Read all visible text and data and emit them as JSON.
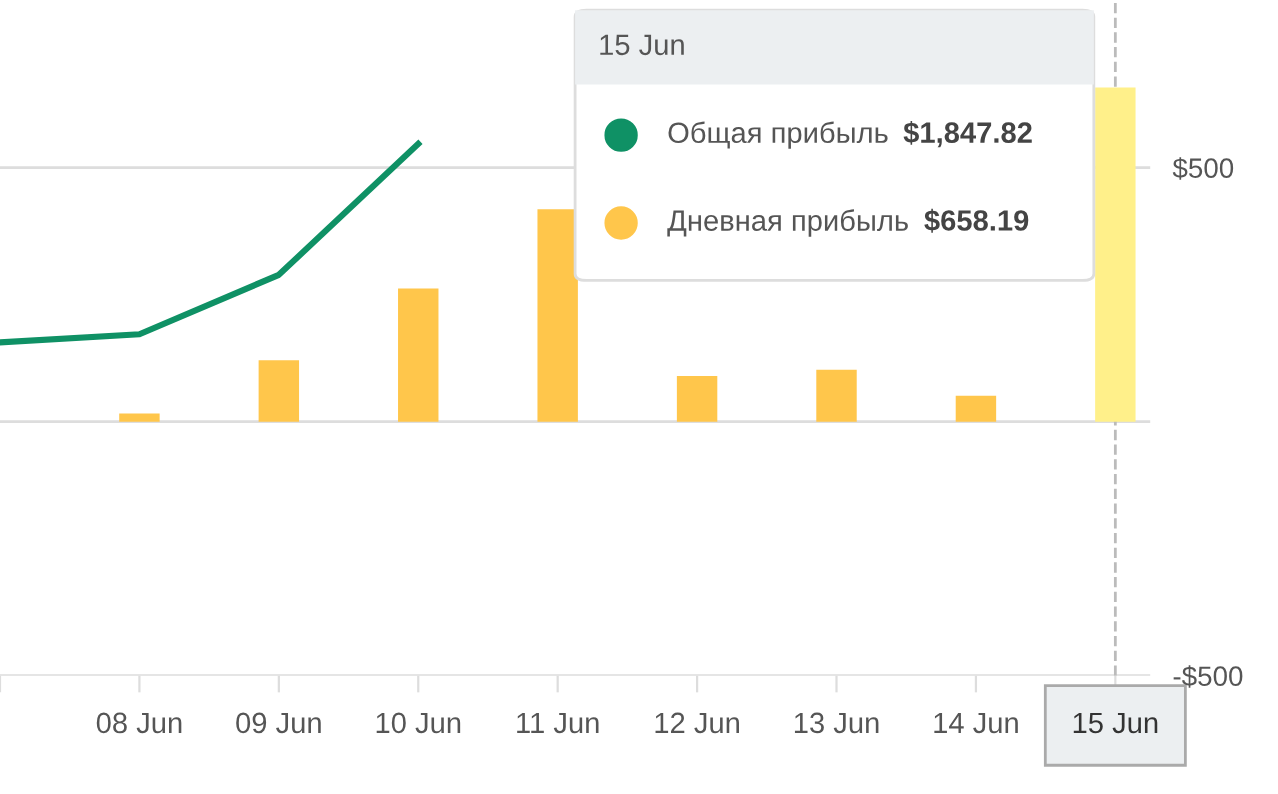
{
  "chart_data": {
    "type": "bar",
    "categories": [
      null,
      "08 Jun",
      "09 Jun",
      "10 Jun",
      "11 Jun",
      "12 Jun",
      "13 Jun",
      "14 Jun",
      "15 Jun"
    ],
    "series": [
      {
        "name": "Общая прибыль",
        "type": "line",
        "color": "#0f9165",
        "values": [
          156,
          172,
          289,
          547,
          null,
          null,
          null,
          null,
          null
        ]
      },
      {
        "name": "Дневная прибыль",
        "color": "#ffc64b",
        "colors": [
          "#ffc64b",
          "#ffc64b",
          "#ffc64b",
          "#ffc64b",
          "#ffc64b",
          "#ffc64b",
          "#ffc64b",
          "#ffc64b",
          "#fff08a"
        ],
        "values": [
          null,
          16,
          121,
          262,
          418,
          90,
          102,
          51,
          658
        ]
      }
    ],
    "ylim": [
      -500,
      830
    ],
    "yticks": [
      {
        "value": 500,
        "label": "$500"
      },
      {
        "value": 0,
        "label": null
      },
      {
        "value": -500,
        "label": "-$500"
      }
    ],
    "grid": "y",
    "legend": "top right",
    "ref_lines": [
      {
        "axis": "x",
        "value": "15 Jun",
        "color": "#bbbbbb",
        "line_style": "dashed"
      }
    ],
    "annotations": [
      "15 Jun",
      "$1,847.82",
      "$658.19"
    ],
    "marker": "none"
  }
}
